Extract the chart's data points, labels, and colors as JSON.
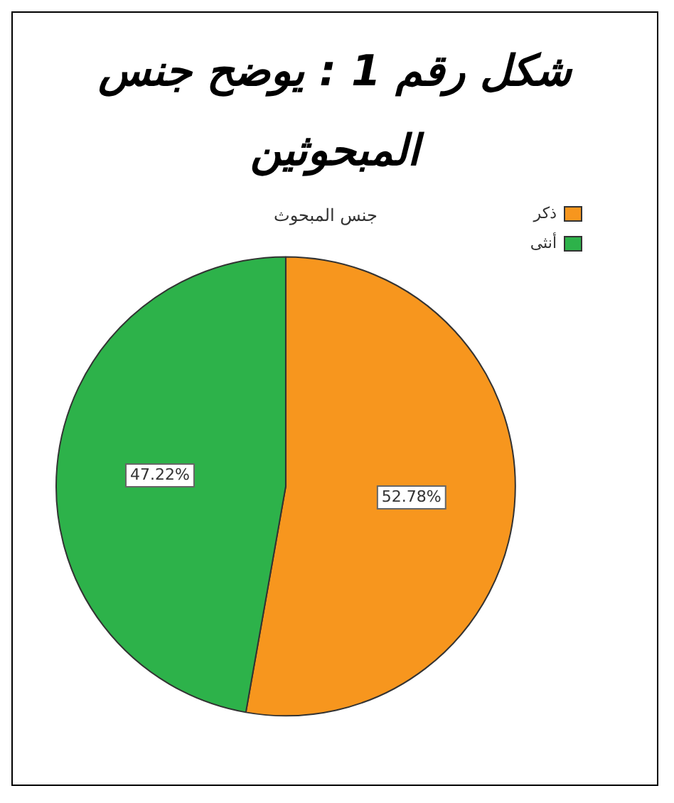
{
  "chart_data": {
    "type": "pie",
    "title": "شكل رقم 1 : يوضح جنس المبحوثين",
    "subtitle": "جنس المبحوث",
    "categories": [
      "ذكر",
      "أنثى"
    ],
    "values": [
      52.78,
      47.22
    ],
    "colors": [
      "#f7961e",
      "#2db24a"
    ],
    "value_labels": [
      "52.78%",
      "47.22%"
    ],
    "legend": "top right"
  }
}
